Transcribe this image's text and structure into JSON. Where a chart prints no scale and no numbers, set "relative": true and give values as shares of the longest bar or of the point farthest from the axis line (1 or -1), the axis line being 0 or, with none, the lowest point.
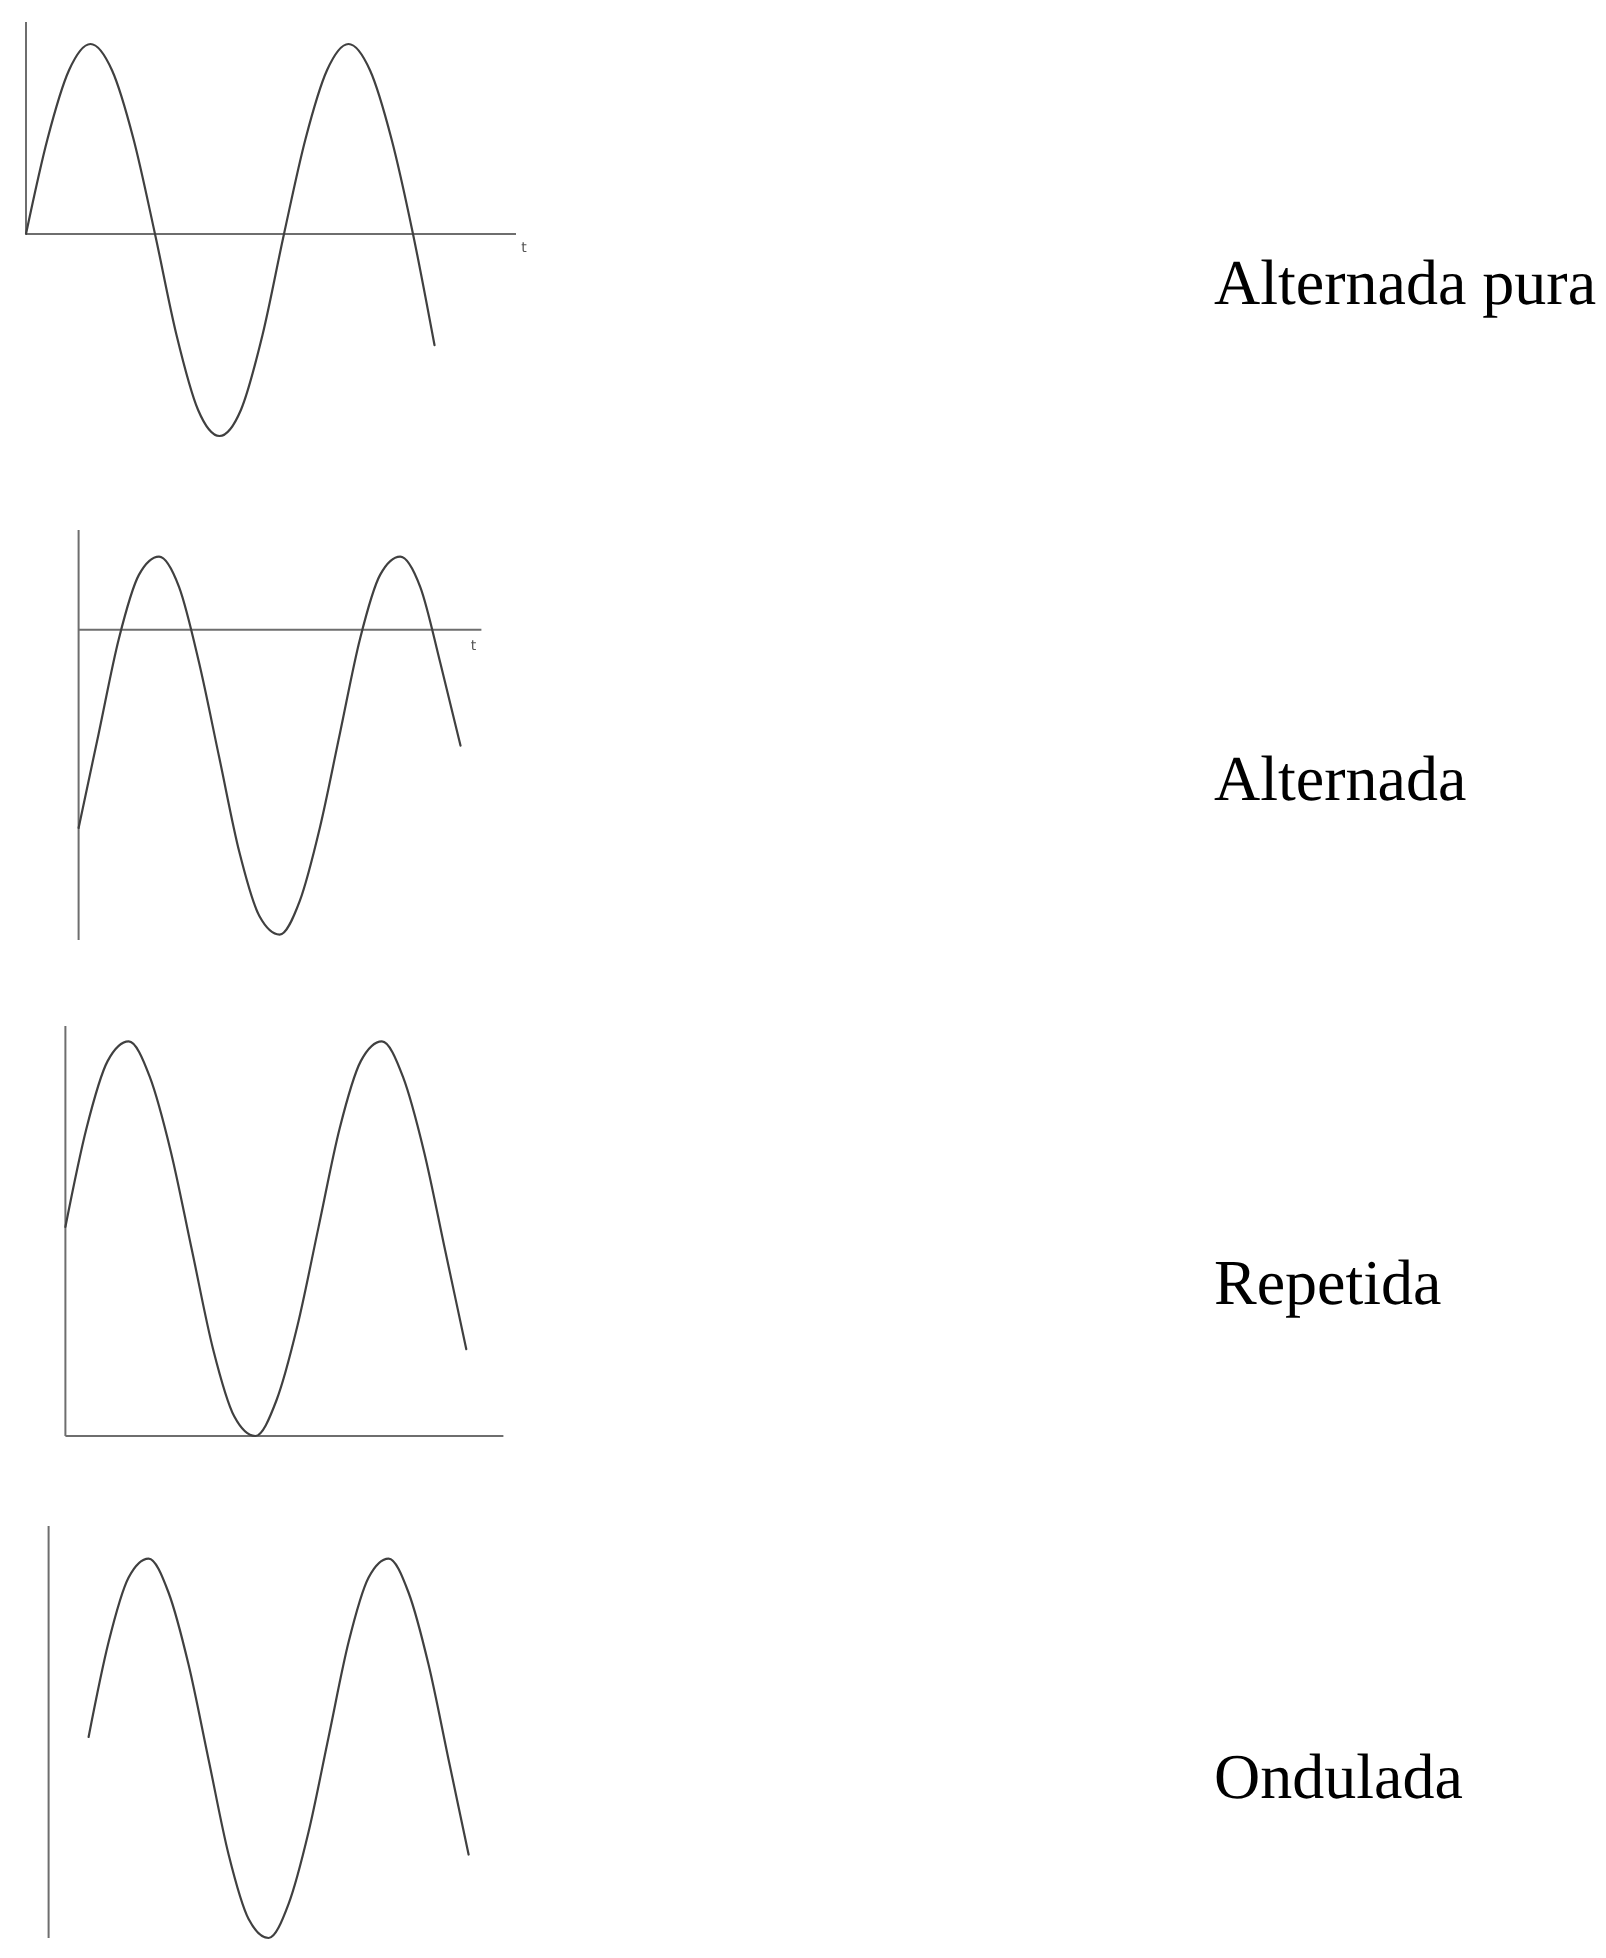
{
  "chart_data": [
    {
      "type": "line",
      "xlabel": "t",
      "relative": true,
      "categories": [
        null,
        null,
        null,
        null,
        null,
        null,
        null,
        null,
        null,
        null,
        null,
        null,
        null,
        null,
        null,
        null,
        null,
        null,
        null,
        null
      ],
      "color": "#404040",
      "values": [
        0,
        0.47,
        0.81,
        0.94,
        0.81,
        0.47,
        0,
        -0.5,
        -0.87,
        -1,
        -0.87,
        -0.5,
        0,
        0.47,
        0.81,
        0.94,
        0.81,
        0.47,
        0,
        -0.55
      ]
    },
    {
      "type": "line",
      "xlabel": "t",
      "relative": true,
      "categories": [
        null,
        null,
        null,
        null,
        null,
        null,
        null,
        null,
        null,
        null,
        null,
        null,
        null,
        null,
        null,
        null,
        null,
        null,
        null,
        null
      ],
      "color": "#404040",
      "values": [
        -0.65,
        -0.34,
        -0.03,
        0.18,
        0.24,
        0.14,
        -0.11,
        -0.42,
        -0.73,
        -0.94,
        -1,
        -0.89,
        -0.65,
        -0.34,
        -0.03,
        0.18,
        0.24,
        0.14,
        -0.11,
        -0.38
      ]
    },
    {
      "type": "line",
      "relative": true,
      "categories": [
        null,
        null,
        null,
        null,
        null,
        null,
        null,
        null,
        null,
        null,
        null,
        null,
        null,
        null,
        null,
        null,
        null,
        null,
        null,
        null
      ],
      "color": "#404040",
      "values": [
        0.53,
        0.78,
        0.95,
        1,
        0.91,
        0.72,
        0.47,
        0.22,
        0.05,
        0,
        0.09,
        0.28,
        0.53,
        0.78,
        0.95,
        1,
        0.91,
        0.72,
        0.47,
        0.22
      ]
    },
    {
      "type": "line",
      "relative": true,
      "categories": [
        null,
        null,
        null,
        null,
        null,
        null,
        null,
        null,
        null,
        null,
        null,
        null,
        null,
        null,
        null,
        null,
        null,
        null,
        null,
        null,
        null,
        null
      ],
      "color": "#404040",
      "values": [
        null,
        null,
        0.53,
        0.78,
        0.95,
        1,
        0.91,
        0.72,
        0.47,
        0.22,
        0.05,
        0,
        0.09,
        0.28,
        0.53,
        0.78,
        0.95,
        1,
        0.91,
        0.72,
        0.47,
        0.22
      ]
    },
    {
      "type": "other",
      "annotations": [
        "Alternada pura",
        "Alternada",
        "Repetida",
        "Ondulada"
      ]
    }
  ]
}
